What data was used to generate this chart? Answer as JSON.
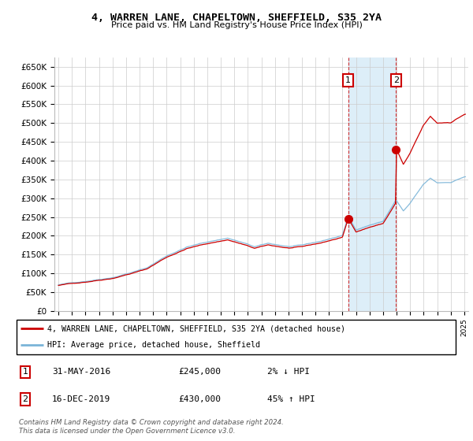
{
  "title": "4, WARREN LANE, CHAPELTOWN, SHEFFIELD, S35 2YA",
  "subtitle": "Price paid vs. HM Land Registry's House Price Index (HPI)",
  "legend_line1": "4, WARREN LANE, CHAPELTOWN, SHEFFIELD, S35 2YA (detached house)",
  "legend_line2": "HPI: Average price, detached house, Sheffield",
  "sale1_date": "31-MAY-2016",
  "sale1_price": "£245,000",
  "sale1_hpi": "2% ↓ HPI",
  "sale1_year": 2016.42,
  "sale1_value": 245000,
  "sale2_date": "16-DEC-2019",
  "sale2_price": "£430,000",
  "sale2_hpi": "45% ↑ HPI",
  "sale2_year": 2019.96,
  "sale2_value": 430000,
  "copyright_text": "Contains HM Land Registry data © Crown copyright and database right 2024.\nThis data is licensed under the Open Government Licence v3.0.",
  "ylim_max": 675000,
  "yticks": [
    0,
    50000,
    100000,
    150000,
    200000,
    250000,
    300000,
    350000,
    400000,
    450000,
    500000,
    550000,
    600000,
    650000
  ],
  "hpi_color": "#7ab4d8",
  "price_color": "#cc0000",
  "shade_color": "#ddeef8",
  "grid_color": "#cccccc",
  "bg_color": "#ffffff"
}
